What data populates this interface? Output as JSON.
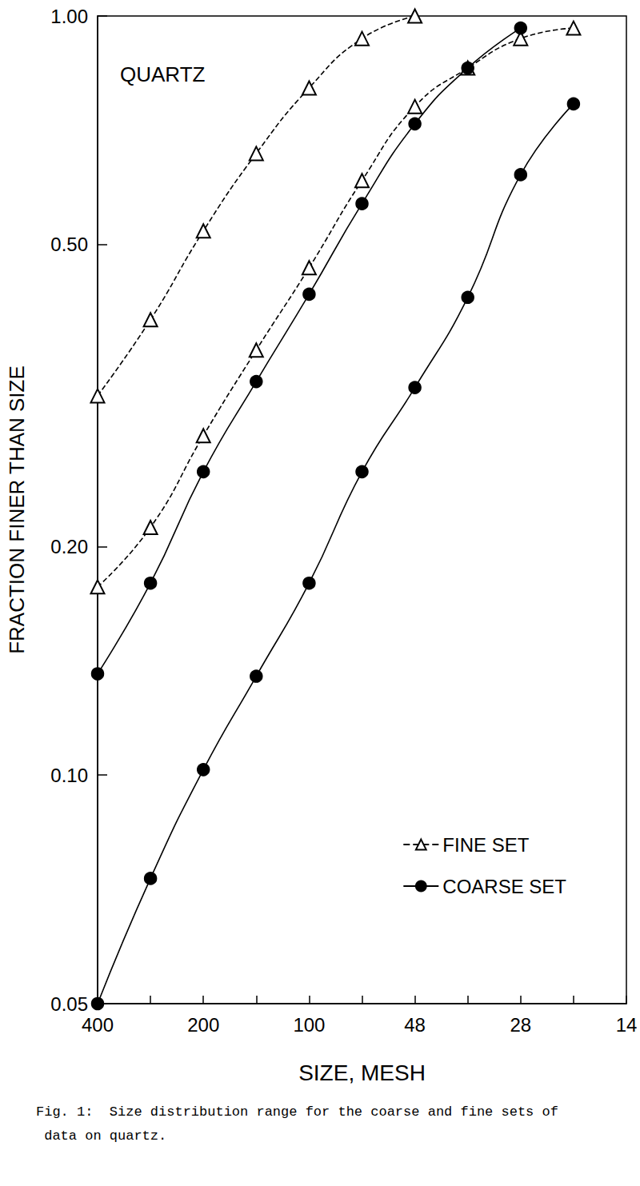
{
  "chart_data": {
    "type": "line",
    "caption": "Fig. 1:  Size distribution range for the coarse and fine sets of data on quartz.",
    "annotation": "QUARTZ",
    "x_label": "SIZE, MESH",
    "y_label": "FRACTION FINER THAN SIZE",
    "categories": [
      "400",
      null,
      "200",
      null,
      "100",
      null,
      "48",
      null,
      "28",
      null,
      "14"
    ],
    "log": "y",
    "ylim": [
      0.05,
      1.0
    ],
    "yticks": [
      {
        "value": 0.05,
        "label": "0.05"
      },
      {
        "value": 0.1,
        "label": "0.10"
      },
      {
        "value": 0.2,
        "label": "0.20"
      },
      {
        "value": 0.5,
        "label": "0.50"
      },
      {
        "value": 1.0,
        "label": "1.00"
      }
    ],
    "grid": false,
    "legend": "lower right",
    "series": [
      {
        "name": "FINE SET",
        "color": "#000000",
        "marker": "triangle",
        "line_style": "dashed",
        "values": [
          0.316,
          0.398,
          0.521,
          0.659,
          0.804,
          0.934,
          1.0,
          null,
          null,
          null,
          null
        ]
      },
      {
        "name": "FINE SET",
        "color": "#000000",
        "marker": "triangle",
        "line_style": "dashed",
        "values": [
          0.177,
          0.212,
          0.28,
          0.363,
          0.466,
          0.607,
          0.76,
          0.854,
          0.934,
          0.964,
          null
        ]
      },
      {
        "name": "COARSE SET",
        "color": "#000000",
        "marker": "circle",
        "line_style": "solid",
        "values": [
          0.136,
          0.179,
          0.251,
          0.33,
          0.43,
          0.566,
          0.721,
          0.854,
          0.964,
          null,
          null
        ]
      },
      {
        "name": "COARSE SET",
        "color": "#000000",
        "marker": "circle",
        "line_style": "solid",
        "values": [
          0.05,
          0.0731,
          0.1017,
          0.135,
          0.179,
          0.251,
          0.324,
          0.426,
          0.618,
          0.766,
          null
        ]
      }
    ]
  }
}
